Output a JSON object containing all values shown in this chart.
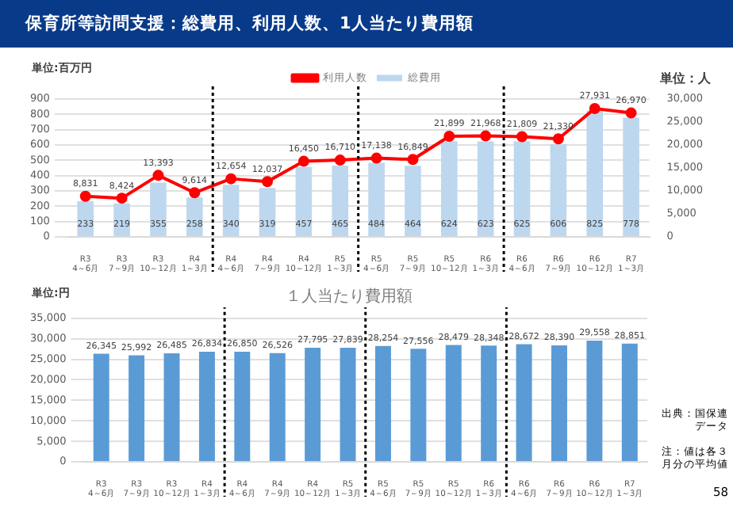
{
  "chart_data": [
    {
      "type": "bar",
      "title": "保育所等訪問支援：総費用、利用人数、1人当たり費用額",
      "ylabel": "単位:百万円",
      "y2label": "単位：人",
      "categories": [
        "R3 4～6月",
        "R3 7～9月",
        "R3 10～12月",
        "R4 1～3月",
        "R4 4～6月",
        "R4 7～9月",
        "R4 10～12月",
        "R5 1～3月",
        "R5 4～6月",
        "R5 7～9月",
        "R5 10～12月",
        "R6 1～3月",
        "R6 4～6月",
        "R6 7～9月",
        "R6 10～12月",
        "R7 1～3月"
      ],
      "series": [
        {
          "name": "総費用",
          "type": "bar",
          "color": "#bdd7ee",
          "values": [
            233,
            219,
            355,
            258,
            340,
            319,
            457,
            465,
            484,
            464,
            624,
            623,
            625,
            606,
            825,
            778
          ],
          "value_labels": [
            "233",
            "219",
            "355",
            "258",
            "340",
            "319",
            "457",
            "465",
            "484",
            "464",
            "624",
            "623",
            "625",
            "606",
            "825",
            "778"
          ]
        },
        {
          "name": "利用人数",
          "type": "line",
          "axis": "y2",
          "color": "#ff0000",
          "values": [
            8831,
            8424,
            13393,
            9614,
            12654,
            12037,
            16450,
            16710,
            17138,
            16849,
            21899,
            21968,
            21809,
            21330,
            27931,
            26970
          ],
          "value_labels": [
            "8,831",
            "8,424",
            "13,393",
            "9,614",
            "12,654",
            "12,037",
            "16,450",
            "16,710",
            "17,138",
            "16,849",
            "21,899",
            "21,968",
            "21,809",
            "21,330",
            "27,931",
            "26,970"
          ]
        }
      ],
      "ylim": [
        0,
        900
      ],
      "yticks": [
        0,
        100,
        200,
        300,
        400,
        500,
        600,
        700,
        800,
        900
      ],
      "y2lim": [
        0,
        30000
      ],
      "y2ticks": [
        0,
        {
          "value": 5000,
          "label": "5,000"
        },
        {
          "value": 10000,
          "label": "10,000"
        },
        {
          "value": 15000,
          "label": "15,000"
        },
        {
          "value": 20000,
          "label": "20,000"
        },
        {
          "value": 25000,
          "label": "25,000"
        },
        {
          "value": 30000,
          "label": "30,000"
        }
      ],
      "grid": "y",
      "legend": "top",
      "marker": "circle"
    },
    {
      "type": "bar",
      "title": "１人当たり費用額",
      "ylabel": "単位:円",
      "categories": [
        "R3 4～6月",
        "R3 7～9月",
        "R3 10～12月",
        "R4 1～3月",
        "R4 4～6月",
        "R4 7～9月",
        "R4 10～12月",
        "R5 1～3月",
        "R5 4～6月",
        "R5 7～9月",
        "R5 10～12月",
        "R6 1～3月",
        "R6 4～6月",
        "R6 7～9月",
        "R6 10～12月",
        "R7 1～3月"
      ],
      "values": [
        26345,
        25992,
        26485,
        26834,
        26850,
        26526,
        27795,
        27839,
        28254,
        27556,
        28479,
        28348,
        28672,
        28390,
        29558,
        28851
      ],
      "value_labels": [
        "26,345",
        "25,992",
        "26,485",
        "26,834",
        "26,850",
        "26,526",
        "27,795",
        "27,839",
        "28,254",
        "27,556",
        "28,479",
        "28,348",
        "28,672",
        "28,390",
        "29,558",
        "28,851"
      ],
      "color": "#5b9bd5",
      "ylim": [
        0,
        35000
      ],
      "yticks": [
        0,
        {
          "value": 5000,
          "label": "5,000"
        },
        {
          "value": 10000,
          "label": "10,000"
        },
        {
          "value": 15000,
          "label": "15,000"
        },
        {
          "value": 20000,
          "label": "20,000"
        },
        {
          "value": 25000,
          "label": "25,000"
        },
        {
          "value": 30000,
          "label": "30,000"
        },
        {
          "value": 35000,
          "label": "35,000"
        }
      ],
      "grid": "y",
      "annotations": [
        "出典：国保連データ",
        "注：値は各３月分の平均値",
        "58"
      ]
    }
  ]
}
